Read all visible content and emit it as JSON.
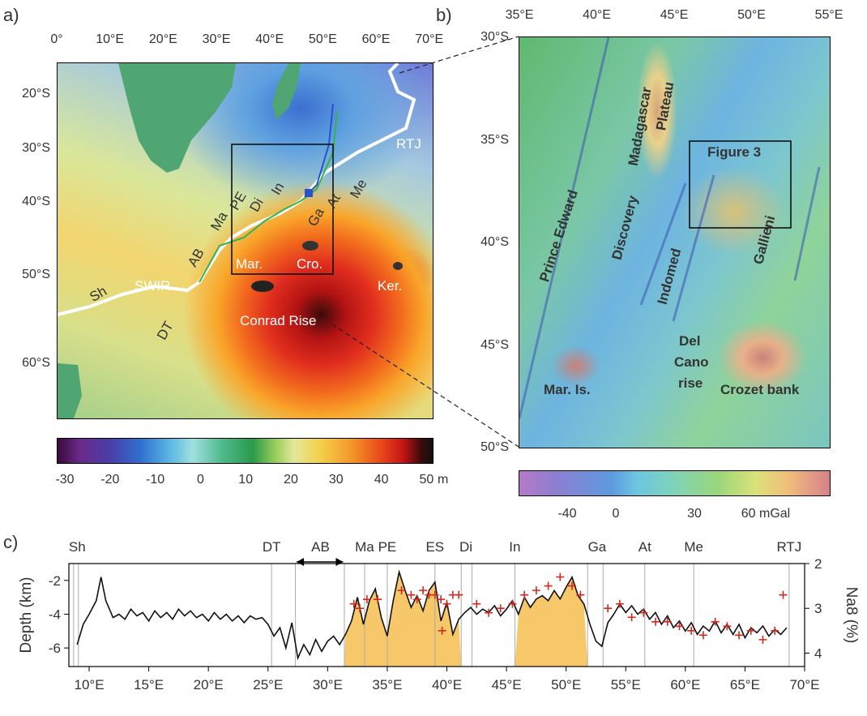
{
  "panels": {
    "a": "a)",
    "b": "b)",
    "c": "c)"
  },
  "panel_a": {
    "lon_ticks": [
      "0°",
      "10°E",
      "20°E",
      "30°E",
      "40°E",
      "50°E",
      "60°E",
      "70°E"
    ],
    "lat_ticks": [
      "20°S",
      "30°S",
      "40°S",
      "50°S",
      "60°S"
    ],
    "labels": {
      "rtj": "RTJ",
      "me": "Me",
      "at": "At",
      "ga": "Ga",
      "in": "In",
      "di": "Di",
      "pe": "PE",
      "ma": "Ma",
      "ab": "AB",
      "dt": "DT",
      "sh": "Sh",
      "swir": "SWIR",
      "mar": "Mar.",
      "cro": "Cro.",
      "ker": "Ker.",
      "conrad": "Conrad Rise"
    },
    "colorbar": {
      "ticks": [
        "-30",
        "-20",
        "-10",
        "0",
        "10",
        "20",
        "30",
        "40",
        "50"
      ],
      "unit": "m"
    }
  },
  "panel_b": {
    "lon_ticks": [
      "35°E",
      "40°E",
      "45°E",
      "50°E",
      "55°E"
    ],
    "lat_ticks": [
      "30°S",
      "35°S",
      "40°S",
      "45°S",
      "50°S"
    ],
    "labels": {
      "madagascar": "Madagascar",
      "plateau": "Plateau",
      "figure3": "Figure 3",
      "prince_edward": "Prince Edward",
      "discovery": "Discovery",
      "indomed": "Indomed",
      "gallieni": "Gallieni",
      "del": "Del",
      "cano": "Cano",
      "rise": "rise",
      "mar_is": "Mar. Is.",
      "crozet": "Crozet bank"
    },
    "colorbar": {
      "ticks": [
        "-40",
        "0",
        "30",
        "60 mGal"
      ]
    }
  },
  "chart_data": {
    "type": "line",
    "xlabel": "",
    "ylabel": "Depth (km)",
    "y2label": "Na8 (%)",
    "x_ticks": [
      "10°E",
      "15°E",
      "20°E",
      "25°E",
      "30°E",
      "35°E",
      "40°E",
      "45°E",
      "50°E",
      "55°E",
      "60°E",
      "65°E",
      "70°E"
    ],
    "y_ticks": [
      "-2",
      "-4",
      "-6"
    ],
    "y2_ticks": [
      "2",
      "3",
      "4"
    ],
    "xlim": [
      8.3,
      70
    ],
    "ylim": [
      -7.1,
      -1.0
    ],
    "y2lim": [
      2.0,
      4.3
    ],
    "segment_labels": [
      "Sh",
      "DT",
      "AB",
      "Ma",
      "PE",
      "ES",
      "Di",
      "In",
      "Ga",
      "At",
      "Me",
      "RTJ"
    ],
    "segment_lon": [
      9,
      25.3,
      29.4,
      33.1,
      35.0,
      39.0,
      41.6,
      45.7,
      52.6,
      56.6,
      60.7,
      68.7
    ],
    "boundaries_lon": [
      8.7,
      9.1,
      25.3,
      27.3,
      31.4,
      33.1,
      35.0,
      39.0,
      41.2,
      42.1,
      45.7,
      51.8,
      53.1,
      56.6,
      60.7,
      68.7
    ],
    "shaded_ranges": [
      [
        31.4,
        41.2
      ],
      [
        45.7,
        51.8
      ]
    ],
    "series": [
      {
        "values": [
          [
            9.0,
            -5.8
          ],
          [
            9.5,
            -4.6
          ],
          [
            10.0,
            -4.0
          ],
          [
            10.6,
            -3.2
          ],
          [
            11.0,
            -1.8
          ],
          [
            11.4,
            -3.2
          ],
          [
            12.0,
            -4.2
          ],
          [
            12.5,
            -4.0
          ],
          [
            13.0,
            -4.3
          ],
          [
            13.5,
            -3.7
          ],
          [
            14.0,
            -4.1
          ],
          [
            14.5,
            -3.9
          ],
          [
            15.0,
            -4.4
          ],
          [
            15.5,
            -3.8
          ],
          [
            16.0,
            -4.2
          ],
          [
            16.5,
            -3.9
          ],
          [
            17.0,
            -4.3
          ],
          [
            17.5,
            -3.7
          ],
          [
            18.0,
            -4.1
          ],
          [
            18.5,
            -3.8
          ],
          [
            19.0,
            -4.2
          ],
          [
            19.5,
            -4.0
          ],
          [
            20.0,
            -4.4
          ],
          [
            20.5,
            -3.9
          ],
          [
            21.0,
            -4.3
          ],
          [
            21.5,
            -4.0
          ],
          [
            22.0,
            -4.4
          ],
          [
            22.5,
            -4.1
          ],
          [
            23.0,
            -4.5
          ],
          [
            23.5,
            -4.1
          ],
          [
            24.0,
            -4.3
          ],
          [
            24.5,
            -4.2
          ],
          [
            25.0,
            -4.6
          ],
          [
            25.5,
            -5.3
          ],
          [
            26.0,
            -4.8
          ],
          [
            26.5,
            -6.0
          ],
          [
            27.0,
            -4.5
          ],
          [
            27.5,
            -6.6
          ],
          [
            28.0,
            -5.8
          ],
          [
            28.5,
            -6.4
          ],
          [
            29.0,
            -5.5
          ],
          [
            29.5,
            -6.2
          ],
          [
            30.0,
            -5.6
          ],
          [
            30.5,
            -5.3
          ],
          [
            31.0,
            -5.8
          ],
          [
            31.5,
            -5.2
          ],
          [
            32.0,
            -4.4
          ],
          [
            32.5,
            -3.0
          ],
          [
            33.0,
            -4.6
          ],
          [
            33.5,
            -3.2
          ],
          [
            34.0,
            -2.5
          ],
          [
            34.5,
            -4.2
          ],
          [
            35.0,
            -5.3
          ],
          [
            35.5,
            -3.2
          ],
          [
            36.0,
            -1.5
          ],
          [
            36.5,
            -2.6
          ],
          [
            37.0,
            -3.6
          ],
          [
            37.5,
            -2.9
          ],
          [
            38.0,
            -3.8
          ],
          [
            38.5,
            -2.6
          ],
          [
            39.0,
            -2.1
          ],
          [
            39.5,
            -4.4
          ],
          [
            40.0,
            -3.3
          ],
          [
            40.5,
            -5.2
          ],
          [
            41.0,
            -4.3
          ],
          [
            41.5,
            -3.9
          ],
          [
            42.0,
            -3.6
          ],
          [
            42.5,
            -4.0
          ],
          [
            43.0,
            -3.7
          ],
          [
            43.5,
            -3.9
          ],
          [
            44.0,
            -3.5
          ],
          [
            44.5,
            -4.1
          ],
          [
            45.0,
            -3.7
          ],
          [
            45.5,
            -3.2
          ],
          [
            46.0,
            -4.0
          ],
          [
            46.5,
            -3.0
          ],
          [
            47.0,
            -3.6
          ],
          [
            47.5,
            -3.1
          ],
          [
            48.0,
            -2.9
          ],
          [
            48.5,
            -3.2
          ],
          [
            49.0,
            -2.6
          ],
          [
            49.5,
            -3.1
          ],
          [
            50.0,
            -2.4
          ],
          [
            50.5,
            -1.8
          ],
          [
            51.0,
            -2.9
          ],
          [
            51.5,
            -3.4
          ],
          [
            52.0,
            -4.6
          ],
          [
            52.5,
            -5.6
          ],
          [
            53.0,
            -5.9
          ],
          [
            53.5,
            -4.5
          ],
          [
            54.0,
            -4.0
          ],
          [
            54.5,
            -3.4
          ],
          [
            55.0,
            -3.9
          ],
          [
            55.5,
            -3.5
          ],
          [
            56.0,
            -4.0
          ],
          [
            56.5,
            -3.7
          ],
          [
            57.0,
            -4.3
          ],
          [
            57.5,
            -3.9
          ],
          [
            58.0,
            -4.6
          ],
          [
            58.5,
            -4.1
          ],
          [
            59.0,
            -4.8
          ],
          [
            59.5,
            -4.4
          ],
          [
            60.0,
            -5.0
          ],
          [
            60.5,
            -4.5
          ],
          [
            61.0,
            -5.2
          ],
          [
            61.5,
            -4.7
          ],
          [
            62.0,
            -5.0
          ],
          [
            62.5,
            -4.4
          ],
          [
            63.0,
            -5.1
          ],
          [
            63.5,
            -4.6
          ],
          [
            64.0,
            -5.2
          ],
          [
            64.5,
            -4.6
          ],
          [
            65.0,
            -5.4
          ],
          [
            65.5,
            -4.8
          ],
          [
            66.0,
            -5.1
          ],
          [
            66.5,
            -4.7
          ],
          [
            67.0,
            -5.3
          ],
          [
            67.5,
            -4.9
          ],
          [
            68.0,
            -5.2
          ],
          [
            68.5,
            -4.8
          ]
        ]
      },
      {
        "axis": "y2",
        "values": [
          [
            32.2,
            2.9
          ],
          [
            32.7,
            3.0
          ],
          [
            33.3,
            2.8
          ],
          [
            34.2,
            2.8
          ],
          [
            36.2,
            2.6
          ],
          [
            37.0,
            2.7
          ],
          [
            37.5,
            2.8
          ],
          [
            38.0,
            2.6
          ],
          [
            38.5,
            2.7
          ],
          [
            39.0,
            2.7
          ],
          [
            39.5,
            2.8
          ],
          [
            40.0,
            2.9
          ],
          [
            40.5,
            2.7
          ],
          [
            41.0,
            2.7
          ],
          [
            39.6,
            3.5
          ],
          [
            42.5,
            2.9
          ],
          [
            43.5,
            3.1
          ],
          [
            44.5,
            3.0
          ],
          [
            45.5,
            2.9
          ],
          [
            46.5,
            2.7
          ],
          [
            47.5,
            2.6
          ],
          [
            48.5,
            2.5
          ],
          [
            49.5,
            2.3
          ],
          [
            50.5,
            2.5
          ],
          [
            51.2,
            2.7
          ],
          [
            53.5,
            3.0
          ],
          [
            54.5,
            2.9
          ],
          [
            55.5,
            3.2
          ],
          [
            56.5,
            3.1
          ],
          [
            57.5,
            3.3
          ],
          [
            58.5,
            3.3
          ],
          [
            59.5,
            3.4
          ],
          [
            60.5,
            3.5
          ],
          [
            61.5,
            3.6
          ],
          [
            62.5,
            3.3
          ],
          [
            63.5,
            3.4
          ],
          [
            64.5,
            3.6
          ],
          [
            65.5,
            3.5
          ],
          [
            66.5,
            3.7
          ],
          [
            67.5,
            3.5
          ],
          [
            68.2,
            2.7
          ]
        ]
      }
    ]
  }
}
